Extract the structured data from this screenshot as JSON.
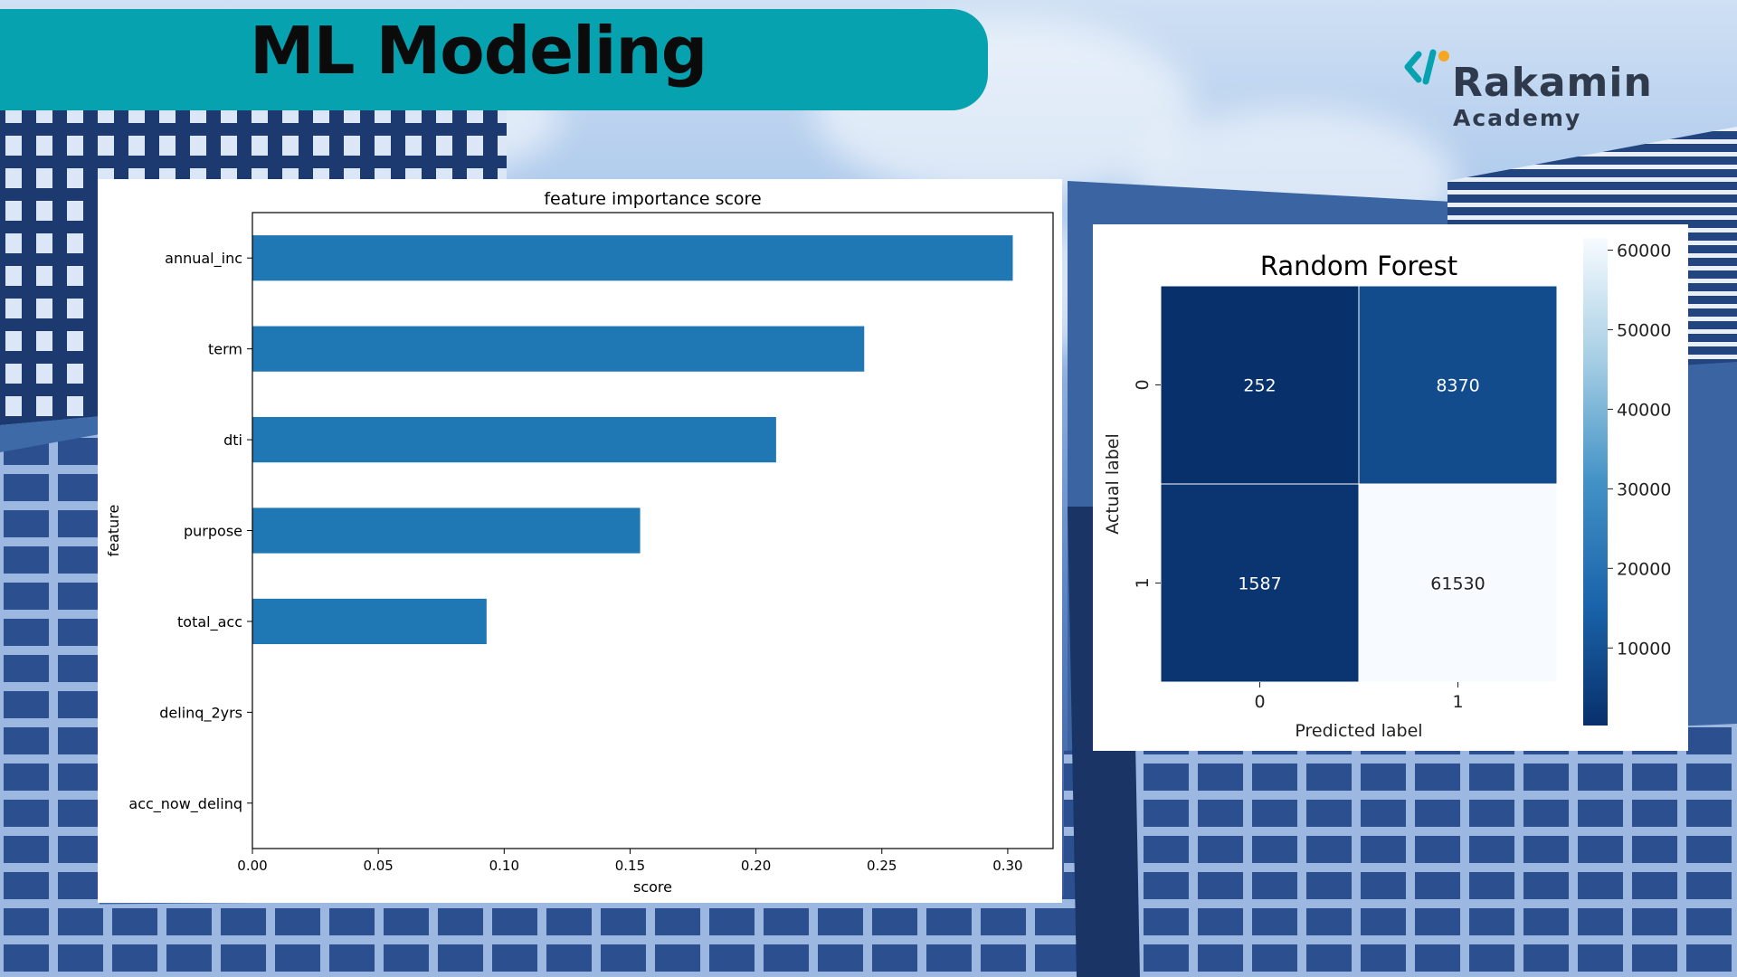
{
  "slide": {
    "title": "ML Modeling",
    "brand": {
      "name": "Rakamin",
      "sub": "Academy",
      "accent": "#f5a623",
      "mark_color": "#07a2b0"
    },
    "banner_color": "#07a2b0"
  },
  "chart_data": [
    {
      "type": "bar",
      "orientation": "horizontal",
      "title": "feature importance score",
      "xlabel": "score",
      "ylabel": "feature",
      "categories": [
        "annual_inc",
        "term",
        "dti",
        "purpose",
        "total_acc",
        "delinq_2yrs",
        "acc_now_delinq"
      ],
      "values": [
        0.302,
        0.243,
        0.208,
        0.154,
        0.093,
        0.0,
        0.0
      ],
      "xlim": [
        0,
        0.318
      ],
      "xticks": [
        "0.00",
        "0.05",
        "0.10",
        "0.15",
        "0.20",
        "0.25",
        "0.30"
      ],
      "xtick_values": [
        0,
        0.05,
        0.1,
        0.15,
        0.2,
        0.25,
        0.3
      ],
      "color": "#1f77b4",
      "grid": false,
      "legend": "none"
    },
    {
      "type": "heatmap",
      "title": "Random Forest",
      "xlabel": "Predicted label",
      "ylabel": "Actual label",
      "x_categories": [
        "0",
        "1"
      ],
      "y_categories": [
        "0",
        "1"
      ],
      "values": [
        [
          252,
          8370
        ],
        [
          1587,
          61530
        ]
      ],
      "cell_labels": [
        [
          "252",
          "8370"
        ],
        [
          "1587",
          "61530"
        ]
      ],
      "colormap": "Blues_r",
      "vmin": 252,
      "vmax": 61530,
      "colorbar_ticks": [
        10000,
        20000,
        30000,
        40000,
        50000,
        60000
      ],
      "colorbar_tick_labels": [
        "10000",
        "20000",
        "30000",
        "40000",
        "50000",
        "60000"
      ],
      "legend": "colorbar-right"
    }
  ]
}
